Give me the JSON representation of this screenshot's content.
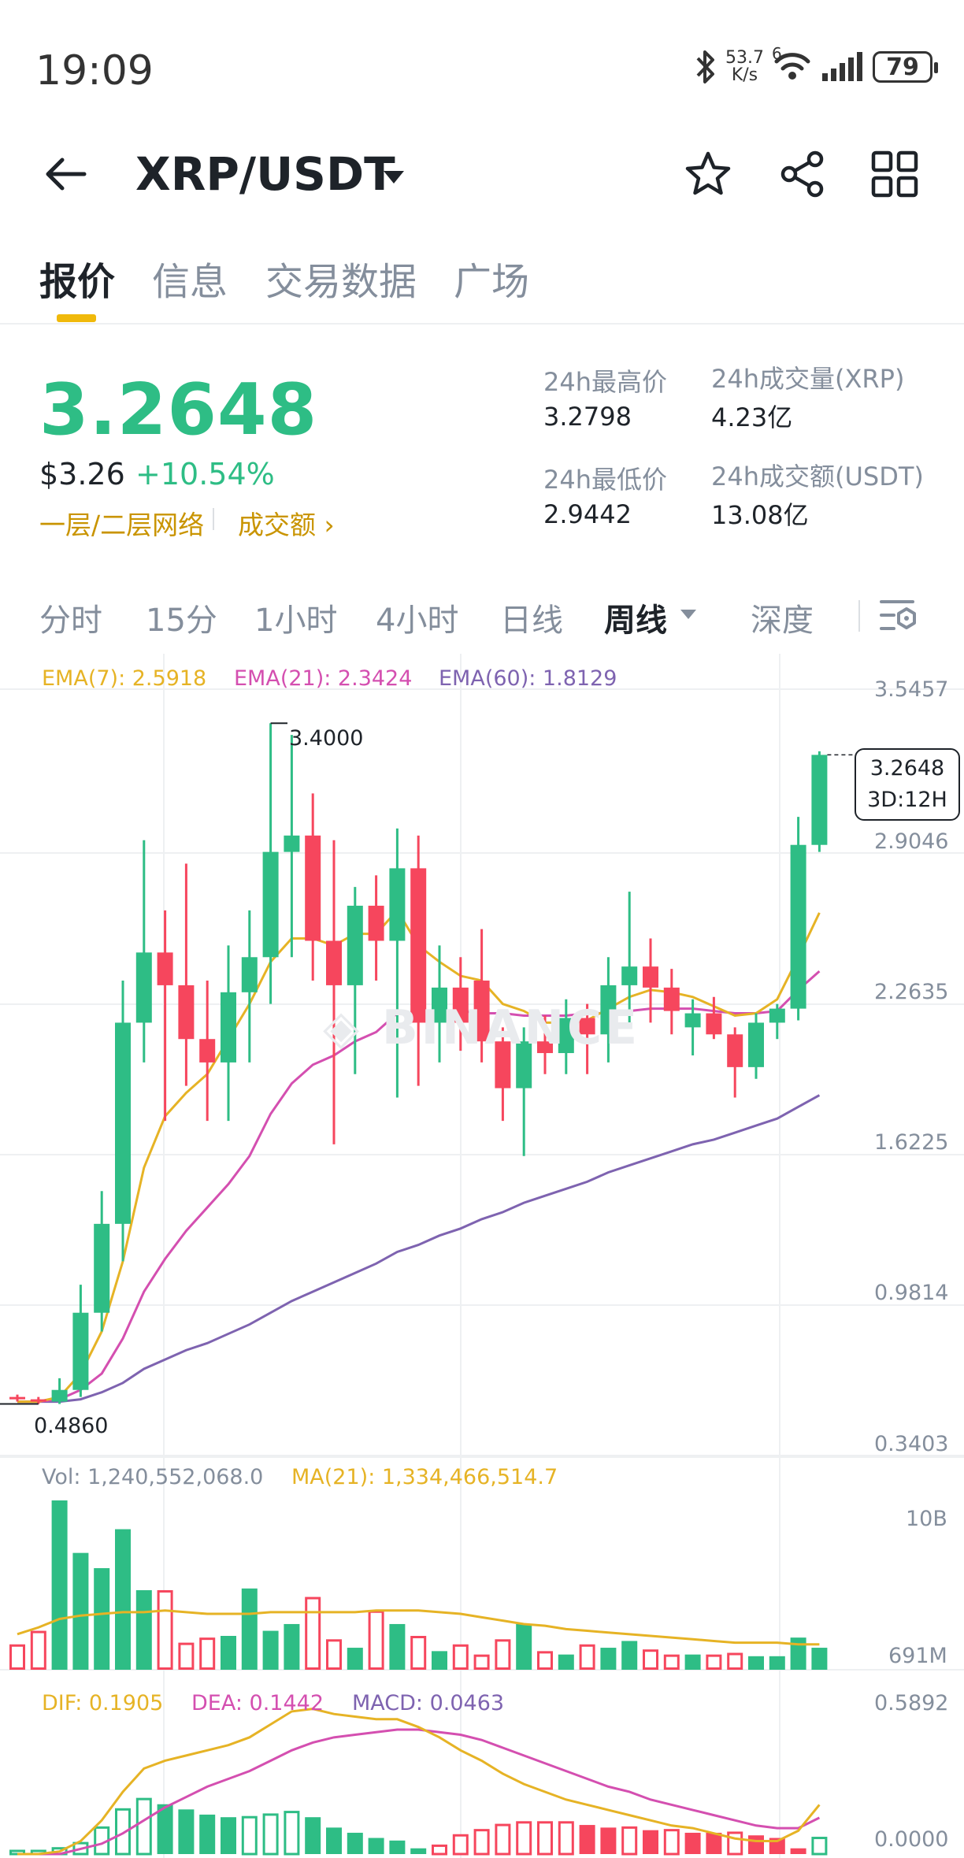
{
  "status_bar": {
    "time": "19:09",
    "net_speed_top": "53.7",
    "net_speed_bottom": "K/s",
    "net_type": "6",
    "battery": "79"
  },
  "header": {
    "pair": "XRP/USDT"
  },
  "tabs": [
    {
      "label": "报价"
    },
    {
      "label": "信息"
    },
    {
      "label": "交易数据"
    },
    {
      "label": "广场"
    }
  ],
  "price": {
    "last": "3.2648",
    "usd": "$3.26",
    "change": "+10.54%",
    "network_link": "一层/二层网络",
    "volume_link": "成交额"
  },
  "stats": {
    "high_label": "24h最高价",
    "high_value": "3.2798",
    "low_label": "24h最低价",
    "low_value": "2.9442",
    "vol_label": "24h成交量(XRP)",
    "vol_value": "4.23亿",
    "amount_label": "24h成交额(USDT)",
    "amount_value": "13.08亿"
  },
  "intervals": [
    {
      "label": "分时"
    },
    {
      "label": "15分"
    },
    {
      "label": "1小时"
    },
    {
      "label": "4小时"
    },
    {
      "label": "日线"
    },
    {
      "label": "周线"
    },
    {
      "label": "深度"
    }
  ],
  "colors": {
    "up": "#2ebd85",
    "down": "#f6465d",
    "ema7": "#e6b325",
    "ema21": "#d44fb0",
    "ema60": "#7e63b0",
    "accent": "#f0b90b"
  },
  "chart_data": {
    "type": "candlestick",
    "ema_legend": {
      "ema7": "EMA(7): 2.5918",
      "ema21": "EMA(21): 2.3424",
      "ema60": "EMA(60): 1.8129"
    },
    "y_ticks": [
      "3.5457",
      "2.9046",
      "2.2635",
      "1.6225",
      "0.9814",
      "0.3403"
    ],
    "ylim": [
      0.3403,
      3.5457
    ],
    "high_marker": "3.4000",
    "low_marker": "0.4860",
    "current_price": "3.2648",
    "countdown": "3D:12H",
    "candles": [
      {
        "o": 0.52,
        "h": 0.53,
        "l": 0.5,
        "c": 0.51
      },
      {
        "o": 0.51,
        "h": 0.52,
        "l": 0.49,
        "c": 0.5
      },
      {
        "o": 0.5,
        "h": 0.6,
        "l": 0.49,
        "c": 0.55
      },
      {
        "o": 0.55,
        "h": 1.0,
        "l": 0.52,
        "c": 0.88
      },
      {
        "o": 0.88,
        "h": 1.4,
        "l": 0.8,
        "c": 1.26
      },
      {
        "o": 1.26,
        "h": 2.3,
        "l": 1.1,
        "c": 2.12
      },
      {
        "o": 2.12,
        "h": 2.9,
        "l": 1.95,
        "c": 2.42
      },
      {
        "o": 2.42,
        "h": 2.6,
        "l": 1.7,
        "c": 2.28
      },
      {
        "o": 2.28,
        "h": 2.8,
        "l": 1.85,
        "c": 2.05
      },
      {
        "o": 2.05,
        "h": 2.3,
        "l": 1.7,
        "c": 1.95
      },
      {
        "o": 1.95,
        "h": 2.45,
        "l": 1.7,
        "c": 2.25
      },
      {
        "o": 2.25,
        "h": 2.6,
        "l": 1.95,
        "c": 2.4
      },
      {
        "o": 2.4,
        "h": 3.4,
        "l": 2.2,
        "c": 2.85
      },
      {
        "o": 2.85,
        "h": 3.35,
        "l": 2.4,
        "c": 2.92
      },
      {
        "o": 2.92,
        "h": 3.1,
        "l": 2.3,
        "c": 2.47
      },
      {
        "o": 2.47,
        "h": 2.9,
        "l": 1.6,
        "c": 2.28
      },
      {
        "o": 2.28,
        "h": 2.7,
        "l": 1.9,
        "c": 2.62
      },
      {
        "o": 2.62,
        "h": 2.75,
        "l": 2.3,
        "c": 2.47
      },
      {
        "o": 2.47,
        "h": 2.95,
        "l": 1.8,
        "c": 2.78
      },
      {
        "o": 2.78,
        "h": 2.92,
        "l": 1.85,
        "c": 2.12
      },
      {
        "o": 2.12,
        "h": 2.45,
        "l": 1.95,
        "c": 2.27
      },
      {
        "o": 2.27,
        "h": 2.4,
        "l": 2.0,
        "c": 2.12
      },
      {
        "o": 2.3,
        "h": 2.52,
        "l": 1.95,
        "c": 2.04
      },
      {
        "o": 2.04,
        "h": 2.1,
        "l": 1.7,
        "c": 1.84
      },
      {
        "o": 1.84,
        "h": 2.1,
        "l": 1.55,
        "c": 2.04
      },
      {
        "o": 2.04,
        "h": 2.15,
        "l": 1.9,
        "c": 1.99
      },
      {
        "o": 1.99,
        "h": 2.22,
        "l": 1.9,
        "c": 2.14
      },
      {
        "o": 2.14,
        "h": 2.2,
        "l": 1.9,
        "c": 2.07
      },
      {
        "o": 2.07,
        "h": 2.4,
        "l": 1.95,
        "c": 2.28
      },
      {
        "o": 2.28,
        "h": 2.68,
        "l": 2.1,
        "c": 2.36
      },
      {
        "o": 2.36,
        "h": 2.48,
        "l": 2.12,
        "c": 2.27
      },
      {
        "o": 2.27,
        "h": 2.35,
        "l": 2.07,
        "c": 2.17
      },
      {
        "o": 2.1,
        "h": 2.22,
        "l": 1.98,
        "c": 2.16
      },
      {
        "o": 2.16,
        "h": 2.23,
        "l": 2.05,
        "c": 2.07
      },
      {
        "o": 2.07,
        "h": 2.1,
        "l": 1.8,
        "c": 1.93
      },
      {
        "o": 1.93,
        "h": 2.16,
        "l": 1.88,
        "c": 2.12
      },
      {
        "o": 2.12,
        "h": 2.2,
        "l": 2.05,
        "c": 2.18
      },
      {
        "o": 2.18,
        "h": 3.0,
        "l": 2.13,
        "c": 2.88
      },
      {
        "o": 2.88,
        "h": 3.28,
        "l": 2.85,
        "c": 3.2648
      }
    ],
    "ema7": [
      0.5,
      0.5,
      0.52,
      0.62,
      0.8,
      1.1,
      1.5,
      1.72,
      1.82,
      1.9,
      2.05,
      2.2,
      2.38,
      2.48,
      2.48,
      2.45,
      2.5,
      2.5,
      2.6,
      2.45,
      2.38,
      2.32,
      2.3,
      2.2,
      2.17,
      2.12,
      2.12,
      2.13,
      2.18,
      2.23,
      2.26,
      2.25,
      2.23,
      2.19,
      2.15,
      2.16,
      2.22,
      2.4,
      2.59
    ],
    "ema21": [
      0.5,
      0.5,
      0.51,
      0.55,
      0.62,
      0.77,
      0.97,
      1.11,
      1.23,
      1.33,
      1.43,
      1.55,
      1.73,
      1.86,
      1.94,
      1.98,
      2.04,
      2.08,
      2.16,
      2.16,
      2.17,
      2.17,
      2.16,
      2.16,
      2.15,
      2.15,
      2.15,
      2.16,
      2.16,
      2.17,
      2.18,
      2.18,
      2.18,
      2.17,
      2.16,
      2.16,
      2.17,
      2.26,
      2.34
    ],
    "ema60": [
      0.5,
      0.5,
      0.5,
      0.51,
      0.54,
      0.58,
      0.64,
      0.68,
      0.72,
      0.75,
      0.79,
      0.83,
      0.88,
      0.93,
      0.97,
      1.01,
      1.05,
      1.09,
      1.14,
      1.17,
      1.21,
      1.24,
      1.28,
      1.31,
      1.35,
      1.38,
      1.41,
      1.44,
      1.48,
      1.51,
      1.54,
      1.57,
      1.6,
      1.62,
      1.65,
      1.68,
      1.71,
      1.76,
      1.81
    ],
    "volume": {
      "legend_vol": "Vol: 1,240,552,068.0",
      "legend_ma": "MA(21): 1,334,466,514.7",
      "y_ticks": [
        "10B",
        "691M"
      ],
      "values": [
        0.15,
        0.23,
        1.0,
        0.69,
        0.6,
        0.83,
        0.47,
        0.47,
        0.16,
        0.19,
        0.2,
        0.48,
        0.23,
        0.27,
        0.43,
        0.18,
        0.13,
        0.35,
        0.27,
        0.2,
        0.11,
        0.15,
        0.09,
        0.18,
        0.27,
        0.11,
        0.09,
        0.15,
        0.13,
        0.17,
        0.12,
        0.09,
        0.09,
        0.09,
        0.1,
        0.08,
        0.08,
        0.19,
        0.13
      ],
      "ma": [
        0.21,
        0.25,
        0.3,
        0.32,
        0.33,
        0.34,
        0.34,
        0.35,
        0.34,
        0.33,
        0.33,
        0.33,
        0.34,
        0.34,
        0.34,
        0.34,
        0.34,
        0.35,
        0.35,
        0.35,
        0.34,
        0.33,
        0.31,
        0.29,
        0.27,
        0.26,
        0.24,
        0.23,
        0.22,
        0.21,
        0.2,
        0.19,
        0.18,
        0.17,
        0.16,
        0.16,
        0.16,
        0.15,
        0.15
      ]
    },
    "macd": {
      "legend_dif": "DIF: 0.1905",
      "legend_dea": "DEA: 0.1442",
      "legend_macd": "MACD: 0.0463",
      "y_ticks": [
        "0.5892",
        "0.0000"
      ],
      "dif": [
        0.0,
        0.0,
        0.01,
        0.05,
        0.13,
        0.24,
        0.33,
        0.36,
        0.38,
        0.4,
        0.42,
        0.45,
        0.5,
        0.55,
        0.56,
        0.54,
        0.53,
        0.52,
        0.52,
        0.49,
        0.45,
        0.4,
        0.36,
        0.31,
        0.27,
        0.24,
        0.21,
        0.19,
        0.17,
        0.15,
        0.13,
        0.11,
        0.1,
        0.08,
        0.06,
        0.05,
        0.05,
        0.09,
        0.19
      ],
      "dea": [
        0.0,
        0.0,
        0.0,
        0.02,
        0.04,
        0.08,
        0.13,
        0.18,
        0.22,
        0.26,
        0.29,
        0.32,
        0.36,
        0.4,
        0.43,
        0.45,
        0.46,
        0.47,
        0.48,
        0.48,
        0.47,
        0.46,
        0.44,
        0.41,
        0.38,
        0.35,
        0.32,
        0.29,
        0.26,
        0.24,
        0.21,
        0.19,
        0.17,
        0.15,
        0.13,
        0.11,
        0.1,
        0.1,
        0.14
      ]
    }
  }
}
